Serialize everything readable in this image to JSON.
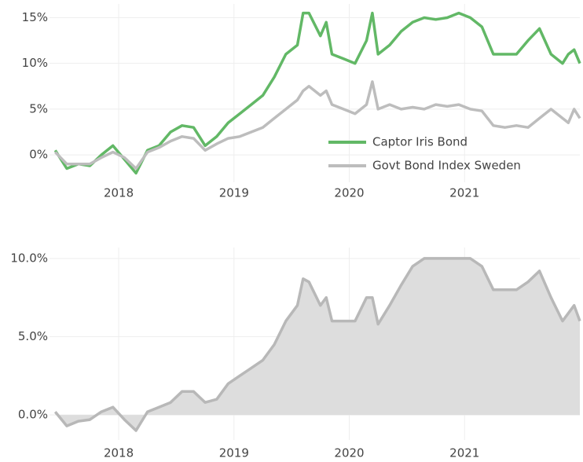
{
  "chart_data": [
    {
      "type": "line",
      "x": [
        2017.45,
        2017.55,
        2017.65,
        2017.75,
        2017.85,
        2017.95,
        2018.05,
        2018.15,
        2018.25,
        2018.35,
        2018.45,
        2018.55,
        2018.65,
        2018.75,
        2018.85,
        2018.95,
        2019.05,
        2019.15,
        2019.25,
        2019.35,
        2019.45,
        2019.55,
        2019.6,
        2019.65,
        2019.75,
        2019.8,
        2019.85,
        2019.95,
        2020.05,
        2020.15,
        2020.2,
        2020.25,
        2020.35,
        2020.45,
        2020.55,
        2020.65,
        2020.75,
        2020.85,
        2020.95,
        2021.05,
        2021.15,
        2021.25,
        2021.35,
        2021.45,
        2021.55,
        2021.65,
        2021.75,
        2021.85,
        2021.9,
        2021.95,
        2022.0
      ],
      "series": [
        {
          "name": "Captor Iris Bond",
          "color": "#62b866",
          "values": [
            0.5,
            -1.5,
            -1.0,
            -1.2,
            0.0,
            1.0,
            -0.5,
            -2.0,
            0.5,
            1.0,
            2.5,
            3.2,
            3.0,
            1.0,
            2.0,
            3.5,
            4.5,
            5.5,
            6.5,
            8.5,
            11.0,
            12.0,
            15.5,
            15.5,
            13.0,
            14.5,
            11.0,
            10.5,
            10.0,
            12.5,
            15.5,
            11.0,
            12.0,
            13.5,
            14.5,
            15.0,
            14.8,
            15.0,
            15.5,
            15.0,
            14.0,
            11.0,
            11.0,
            11.0,
            12.5,
            13.8,
            11.0,
            10.0,
            11.0,
            11.5,
            10.0
          ]
        },
        {
          "name": "Govt Bond Index Sweden",
          "color": "#bdbdbd",
          "values": [
            0.3,
            -1.0,
            -1.0,
            -1.0,
            -0.3,
            0.3,
            -0.3,
            -1.5,
            0.3,
            0.8,
            1.5,
            2.0,
            1.8,
            0.5,
            1.2,
            1.8,
            2.0,
            2.5,
            3.0,
            4.0,
            5.0,
            6.0,
            7.0,
            7.5,
            6.5,
            7.0,
            5.5,
            5.0,
            4.5,
            5.5,
            8.0,
            5.0,
            5.5,
            5.0,
            5.2,
            5.0,
            5.5,
            5.3,
            5.5,
            5.0,
            4.8,
            3.2,
            3.0,
            3.2,
            3.0,
            4.0,
            5.0,
            4.0,
            3.5,
            5.0,
            4.0
          ]
        }
      ],
      "xlim": [
        2017.4,
        2022.0
      ],
      "xticks": [
        2018,
        2019,
        2020,
        2021
      ],
      "ylim": [
        -3,
        16.5
      ],
      "yticks": [
        {
          "value": 0,
          "label": "0%"
        },
        {
          "value": 5,
          "label": "5%"
        },
        {
          "value": 10,
          "label": "10%"
        },
        {
          "value": 15,
          "label": "15%"
        }
      ],
      "grid": true,
      "legend": "lower right"
    },
    {
      "type": "area",
      "x": [
        2017.45,
        2017.55,
        2017.65,
        2017.75,
        2017.85,
        2017.95,
        2018.05,
        2018.15,
        2018.25,
        2018.35,
        2018.45,
        2018.55,
        2018.65,
        2018.75,
        2018.85,
        2018.95,
        2019.05,
        2019.15,
        2019.25,
        2019.35,
        2019.45,
        2019.55,
        2019.6,
        2019.65,
        2019.75,
        2019.8,
        2019.85,
        2019.95,
        2020.05,
        2020.15,
        2020.2,
        2020.25,
        2020.35,
        2020.45,
        2020.55,
        2020.65,
        2020.75,
        2020.85,
        2020.95,
        2021.05,
        2021.15,
        2021.25,
        2021.35,
        2021.45,
        2021.55,
        2021.65,
        2021.75,
        2021.85,
        2021.9,
        2021.95,
        2022.0
      ],
      "values": [
        0.2,
        -0.7,
        -0.4,
        -0.3,
        0.2,
        0.5,
        -0.3,
        -1.0,
        0.2,
        0.5,
        0.8,
        1.5,
        1.5,
        0.8,
        1.0,
        2.0,
        2.5,
        3.0,
        3.5,
        4.5,
        6.0,
        7.0,
        8.7,
        8.5,
        7.0,
        7.5,
        6.0,
        6.0,
        6.0,
        7.5,
        7.5,
        5.8,
        7.0,
        8.3,
        9.5,
        10.0,
        10.0,
        10.0,
        10.0,
        10.0,
        9.5,
        8.0,
        8.0,
        8.0,
        8.5,
        9.2,
        7.5,
        6.0,
        6.5,
        7.0,
        6.0
      ],
      "color": "#b8b8b8",
      "fill": "#dddddd",
      "xlim": [
        2017.4,
        2022.0
      ],
      "xticks": [
        2018,
        2019,
        2020,
        2021
      ],
      "ylim": [
        -1.6,
        10.7
      ],
      "yticks": [
        {
          "value": 0,
          "label": "0.0%"
        },
        {
          "value": 5,
          "label": "5.0%"
        },
        {
          "value": 10,
          "label": "10.0%"
        }
      ],
      "grid": true
    }
  ]
}
